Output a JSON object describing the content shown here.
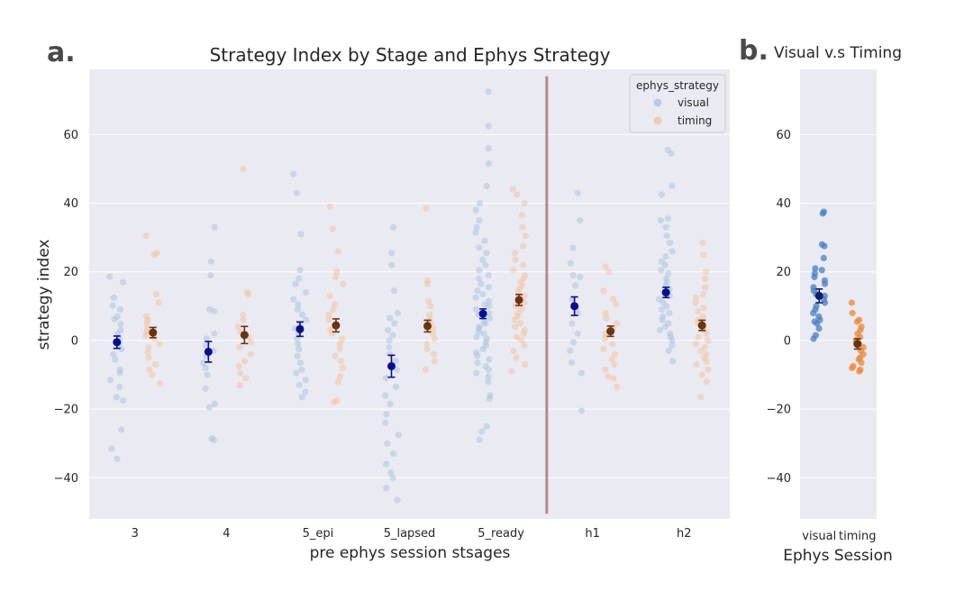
{
  "panels": {
    "a_label": "a.",
    "b_label": "b."
  },
  "chart_data": [
    {
      "type": "scatter",
      "title": "Strategy Index by Stage and Ephys Strategy",
      "xlabel": "pre ephys session stsages",
      "ylabel": "strategy index",
      "ylim": [
        -52,
        79
      ],
      "yticks": [
        -40,
        -20,
        0,
        20,
        40,
        60
      ],
      "ytick_labels": [
        "−40",
        "−20",
        "0",
        "20",
        "40",
        "60"
      ],
      "categories": [
        "3",
        "4",
        "5_epi",
        "5_lapsed",
        "5_ready",
        "h1",
        "h2"
      ],
      "grid": true,
      "divider_after_category": "5_ready",
      "legend": {
        "title": "ephys_strategy",
        "position": "top-right",
        "entries": [
          {
            "label": "visual",
            "color": "#a9c4e0"
          },
          {
            "label": "timing",
            "color": "#f3c3a0"
          }
        ]
      },
      "series": [
        {
          "name": "visual",
          "point_color": "#a9c4e0",
          "mean_color": "#0b0e8c",
          "means": [
            -0.5,
            -3.3,
            3.3,
            -7.5,
            7.8,
            10.0,
            14.0
          ],
          "ci_half": [
            1.8,
            3.0,
            2.1,
            3.2,
            1.4,
            2.7,
            1.5
          ],
          "points": [
            [
              18.6,
              17.0,
              12.5,
              10.2,
              9.0,
              7.0,
              6.2,
              4.8,
              3.0,
              2.0,
              0.5,
              -1.0,
              -2.5,
              -4.0,
              -5.5,
              -8.5,
              -9.5,
              -11.5,
              -13.5,
              -16.5,
              -17.5,
              -26.0,
              -31.5,
              -34.5
            ],
            [
              33.0,
              23.0,
              19.0,
              9.0,
              8.5,
              2.0,
              0.5,
              -1.5,
              -3.0,
              -4.5,
              -6.5,
              -8.0,
              -10.0,
              -14.0,
              -18.5,
              -19.5,
              -28.5,
              -29.0
            ],
            [
              48.5,
              43.0,
              31.0,
              20.5,
              18.0,
              16.5,
              14.0,
              12.0,
              10.5,
              9.0,
              7.5,
              6.0,
              4.5,
              3.5,
              2.0,
              0.5,
              -1.0,
              -2.5,
              -4.5,
              -6.5,
              -8.5,
              -9.5,
              -11.5,
              -13.0,
              -15.0,
              -16.5
            ],
            [
              33.0,
              25.5,
              22.0,
              14.5,
              8.0,
              6.5,
              5.0,
              3.0,
              1.5,
              0.0,
              -2.0,
              -4.0,
              -6.0,
              -8.5,
              -11.0,
              -13.5,
              -16.0,
              -18.5,
              -21.5,
              -24.0,
              -27.5,
              -30.0,
              -33.0,
              -36.0,
              -38.5,
              -40.0,
              -43.0,
              -46.5
            ],
            [
              72.5,
              62.5,
              56.0,
              51.5,
              45.0,
              40.0,
              38.0,
              35.0,
              33.0,
              31.5,
              29.0,
              27.0,
              25.5,
              23.5,
              22.0,
              20.5,
              19.0,
              18.0,
              16.5,
              15.5,
              14.5,
              13.5,
              12.5,
              11.5,
              10.5,
              10.0,
              9.0,
              8.0,
              7.5,
              6.5,
              5.5,
              5.0,
              4.0,
              3.5,
              2.5,
              2.0,
              1.0,
              0.5,
              -0.5,
              -1.5,
              -2.5,
              -3.5,
              -4.5,
              -5.5,
              -6.5,
              -7.5,
              -8.5,
              -9.5,
              -10.5,
              -12.0,
              -16.0,
              -17.0,
              -25.0,
              -26.5,
              -29.0
            ],
            [
              43.0,
              35.0,
              27.0,
              22.5,
              19.0,
              18.5,
              16.0,
              12.0,
              9.5,
              8.0,
              5.0,
              2.0,
              -0.5,
              -3.0,
              -6.5,
              -9.5,
              -20.5
            ],
            [
              55.5,
              54.5,
              45.0,
              42.5,
              35.5,
              35.0,
              33.0,
              30.5,
              28.5,
              26.0,
              24.5,
              23.0,
              22.0,
              20.5,
              19.5,
              18.0,
              17.0,
              16.0,
              15.0,
              14.0,
              13.0,
              12.0,
              11.0,
              10.0,
              9.0,
              8.0,
              7.0,
              6.0,
              5.0,
              4.0,
              3.0,
              2.0,
              1.0,
              0.0,
              -1.5,
              -3.0,
              -6.0
            ]
          ]
        },
        {
          "name": "timing",
          "point_color": "#f3c3a0",
          "mean_color": "#6b3311",
          "means": [
            2.3,
            1.6,
            4.4,
            4.2,
            11.8,
            2.7,
            4.4
          ],
          "ci_half": [
            1.5,
            2.5,
            1.9,
            1.7,
            1.6,
            1.5,
            1.5
          ],
          "points": [
            [
              30.5,
              25.5,
              25.0,
              13.5,
              11.0,
              7.0,
              6.0,
              5.0,
              3.5,
              2.5,
              1.5,
              0.5,
              -1.0,
              -2.0,
              -3.5,
              -5.0,
              -7.0,
              -8.5,
              -10.0,
              -12.5
            ],
            [
              50.0,
              14.0,
              13.5,
              7.5,
              6.0,
              4.0,
              2.5,
              1.0,
              -0.5,
              -2.0,
              -4.0,
              -6.0,
              -7.5,
              -9.5,
              -11.0,
              -13.0
            ],
            [
              39.0,
              32.5,
              26.0,
              20.0,
              18.5,
              16.5,
              13.0,
              10.5,
              9.0,
              7.5,
              6.0,
              4.5,
              3.0,
              2.0,
              0.5,
              -1.0,
              -2.5,
              -4.5,
              -6.0,
              -8.0,
              -10.5,
              -12.0,
              -17.5,
              -18.0
            ],
            [
              38.5,
              17.5,
              16.5,
              11.5,
              10.0,
              7.5,
              6.0,
              5.0,
              3.5,
              2.0,
              0.5,
              -1.0,
              -2.5,
              -4.0,
              -6.0,
              -8.5
            ],
            [
              44.0,
              42.5,
              40.0,
              36.5,
              33.0,
              30.5,
              27.5,
              25.5,
              23.5,
              22.0,
              20.5,
              19.0,
              18.0,
              17.0,
              16.0,
              15.0,
              14.0,
              13.0,
              12.0,
              11.0,
              10.0,
              9.0,
              8.0,
              7.0,
              6.0,
              5.0,
              4.0,
              3.0,
              2.0,
              1.0,
              0.0,
              -1.5,
              -3.0,
              -5.0,
              -7.0,
              -9.0
            ],
            [
              21.5,
              20.0,
              14.5,
              12.0,
              10.5,
              8.0,
              6.5,
              5.0,
              3.5,
              2.0,
              0.5,
              -1.0,
              -2.5,
              -4.0,
              -5.5,
              -7.0,
              -8.5,
              -10.5,
              -11.0,
              -13.5
            ],
            [
              28.5,
              25.0,
              20.0,
              18.0,
              15.5,
              13.5,
              12.5,
              11.0,
              9.5,
              8.5,
              7.0,
              6.0,
              5.0,
              4.0,
              3.0,
              2.0,
              1.0,
              0.0,
              -1.0,
              -2.0,
              -3.0,
              -4.0,
              -5.0,
              -6.0,
              -7.0,
              -8.5,
              -10.0,
              -12.0,
              -16.5
            ]
          ]
        }
      ]
    },
    {
      "type": "scatter",
      "title": "Visual v.s Timing",
      "xlabel": "Ephys Session",
      "ylabel": "",
      "ylim": [
        -52,
        79
      ],
      "yticks": [
        -40,
        -20,
        0,
        20,
        40,
        60
      ],
      "ytick_labels": [
        "−40",
        "−20",
        "0",
        "20",
        "40",
        "60"
      ],
      "categories": [
        "visual",
        "timing"
      ],
      "grid": true,
      "series": [
        {
          "name": "visual",
          "point_color": "#4a7fbf",
          "mean_color": "#0b1f6e",
          "means": [
            13.0
          ],
          "ci_half": [
            2.0
          ],
          "points": [
            [
              37.5,
              37.0,
              28.0,
              27.5,
              24.0,
              21.0,
              20.5,
              19.5,
              18.5,
              17.5,
              16.5,
              15.5,
              14.5,
              13.5,
              13.0,
              12.0,
              11.0,
              10.0,
              9.0,
              8.0,
              7.0,
              6.0,
              5.5,
              5.0,
              3.5,
              1.5,
              0.5
            ]
          ]
        },
        {
          "name": "timing",
          "point_color": "#e8893a",
          "mean_color": "#6b3311",
          "means": [
            -1.0
          ],
          "ci_half": [
            1.5
          ],
          "points": [
            [
              11.0,
              8.0,
              6.0,
              5.5,
              4.0,
              3.0,
              2.0,
              1.0,
              0.0,
              -1.0,
              -2.0,
              -3.0,
              -4.0,
              -5.0,
              -5.5,
              -6.5,
              -7.5,
              -8.0,
              -8.5,
              -9.0
            ]
          ]
        }
      ]
    }
  ]
}
